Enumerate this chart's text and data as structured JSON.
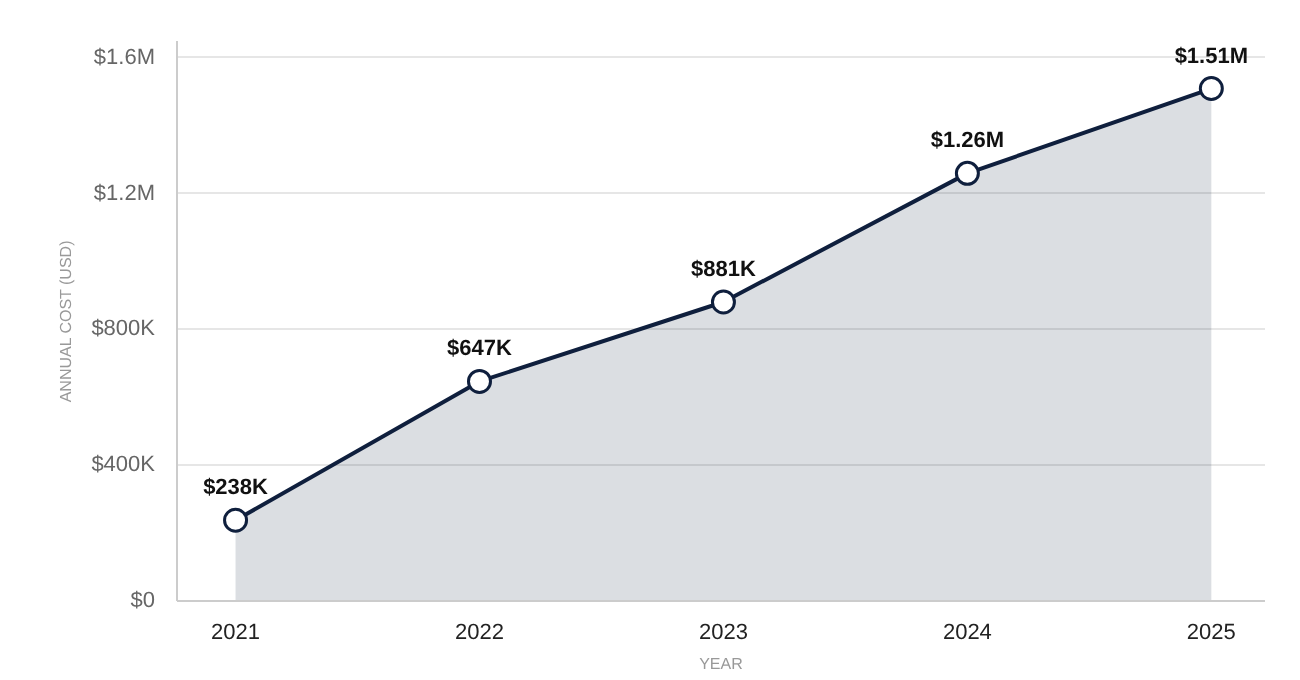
{
  "chart_data": {
    "type": "area",
    "xlabel": "YEAR",
    "ylabel": "ANNUAL COST (USD)",
    "x": [
      2021,
      2022,
      2023,
      2024,
      2025
    ],
    "series": [
      {
        "color": "#0f1f3d",
        "values": [
          238000,
          647000,
          881000,
          1260000,
          1510000
        ],
        "value_labels": [
          "$238K",
          "$647K",
          "$881K",
          "$1.26M",
          "$1.51M"
        ]
      }
    ],
    "xlim": [
      2020.76,
      2025.22
    ],
    "xticks": [
      2021,
      2022,
      2023,
      2024,
      2025
    ],
    "ylim": [
      0,
      1650000
    ],
    "yticks": [
      {
        "value": 0,
        "label": "$0"
      },
      {
        "value": 400000,
        "label": "$400K"
      },
      {
        "value": 800000,
        "label": "$800K"
      },
      {
        "value": 1200000,
        "label": "$1.2M"
      },
      {
        "value": 1600000,
        "label": "$1.6M"
      }
    ],
    "grid": "y",
    "marker": "circle",
    "line_style": "solid"
  }
}
